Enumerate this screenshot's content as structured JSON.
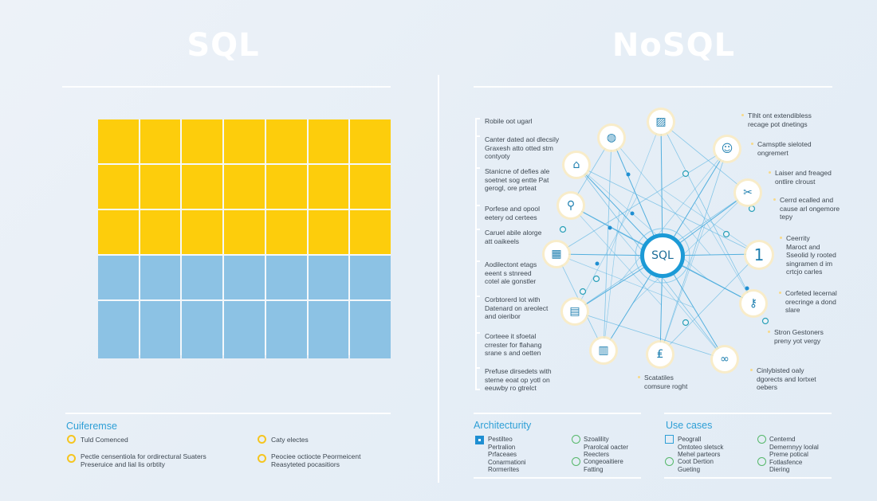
{
  "left_panel": {
    "title": "SQL",
    "grid": {
      "columns": 7,
      "rows": [
        {
          "color": "yellow"
        },
        {
          "color": "yellow"
        },
        {
          "color": "yellow"
        },
        {
          "color": "blue"
        },
        {
          "color": "blue"
        }
      ],
      "colors": {
        "yellow": "#fdcd0c",
        "blue": "#8cc2e4"
      }
    },
    "bottom": {
      "heading": "Cuiferemse",
      "items": [
        {
          "text": "Tuld Comenced",
          "icon": "yellow-ring-icon"
        },
        {
          "text": "Caty electes",
          "icon": "yellow-ring-icon"
        },
        {
          "text": "Pectle censentiola for ordirectural Suaters\nPreseruice and lial lis orbtity",
          "icon": "yellow-ring-icon"
        },
        {
          "text": "Peociee octiocte Peormeicent\nReasyteted pocasitiors",
          "icon": "yellow-ring-icon"
        }
      ]
    }
  },
  "right_panel": {
    "title": "NoSQL",
    "hub_label": "SQL",
    "left_notes": [
      "Robile oot ugarl",
      "Canter dated aol dlecsily\nGraxesh atto otted stm\ncontyoty",
      "Stanicne of defies ale\nsoetnet sog entte Pat\ngerogl, ore prteat",
      "Porfese and opool\neetery od certees",
      "Caruel abile alorge\natt oaikeels",
      "Aodilectont etags\neeent s stnreed\ncotel ale gonstler",
      "Corbtorerd lot with\nDatenard on areolect\nand oieribor",
      "Corteee it sfoetal\ncrrester for flahang\nsrane s and oetten",
      "Prefuse dirsedets with\nsterne eoat op yotl on\neeuwby ro gtrelct"
    ],
    "right_notes": [
      "Tlhlt ont extendibless\nrecage pot dnetings",
      "Camsptle sieloted\nongremert",
      "Laiser and freaged\nontlire clroust",
      "Cerrd ecalled and\ncause arl ongemore\ntepy",
      "Ceerrity\nMaroct and\nSseolid ly rooted\nsingramen d im\ncrtcjo carles",
      "Corfeted lecernal\norecringe a dond\nslare",
      "Stron Gestoners\npreny yot vergy",
      "Cinlybisted oaly\ndgorects and lortxet\noebers"
    ],
    "bottom_note": "Scatatiles\ncomsure roght",
    "nodes": [
      {
        "icon": "chart-icon",
        "glyph": "▨"
      },
      {
        "icon": "globe-icon",
        "glyph": "◍"
      },
      {
        "icon": "user-icon",
        "glyph": "☺"
      },
      {
        "icon": "tag-icon",
        "glyph": "⌂"
      },
      {
        "icon": "tools-icon",
        "glyph": "✂"
      },
      {
        "icon": "search-icon",
        "glyph": "⚲"
      },
      {
        "icon": "cube-icon",
        "glyph": "▦"
      },
      {
        "icon": "number-one-icon",
        "glyph": "1"
      },
      {
        "icon": "message-icon",
        "glyph": "▤"
      },
      {
        "icon": "key-icon",
        "glyph": "⚷"
      },
      {
        "icon": "document-icon",
        "glyph": "▥"
      },
      {
        "icon": "currency-icon",
        "glyph": "₤"
      },
      {
        "icon": "link-icon",
        "glyph": "∞"
      }
    ],
    "architecture": {
      "heading": "Architecturity",
      "col1": "Pestilteo\nPertralion\nPrfaceaes\nConarmationi\nRormerites",
      "col2a": "Szoalility\nPrarolcal oacter\nReecters",
      "col2b": "Congeoaitiere\nFatting"
    },
    "use_cases": {
      "heading": "Use cases",
      "col1a": "Peograll\nOmtoteo sletsck\nMehel parteors",
      "col1b": "Coot Dertion\nGueting",
      "col2": "Centemd\nDemernnyy loolal\nPreme potical\nFotlasfence\nDiering"
    }
  }
}
